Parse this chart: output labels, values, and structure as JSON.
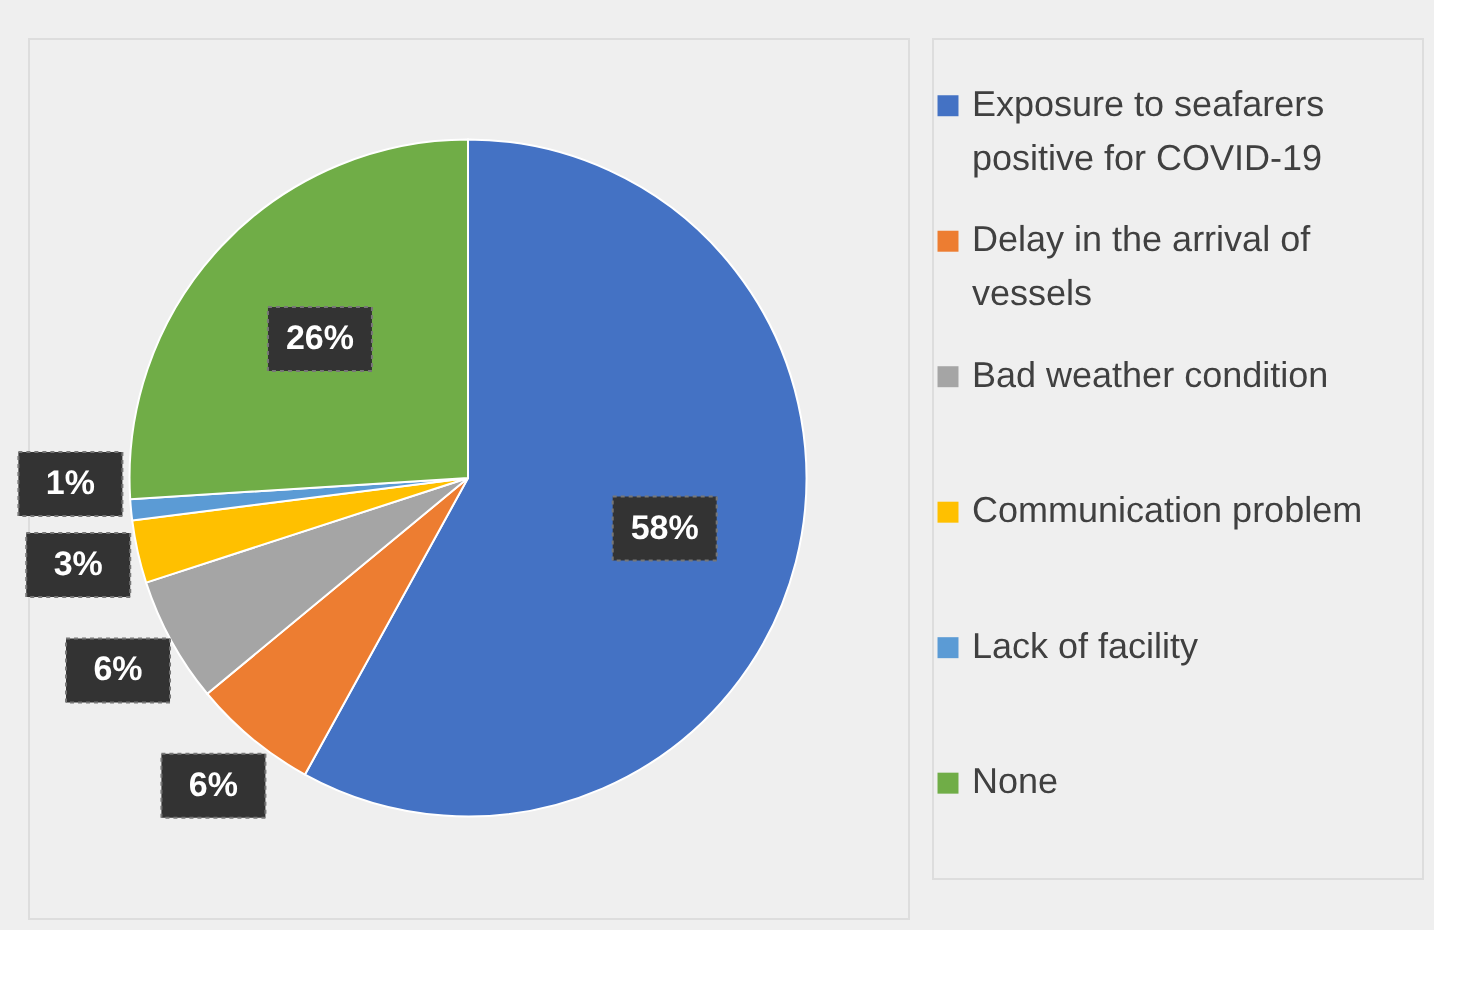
{
  "chart_data": {
    "type": "pie",
    "categories": [
      "Exposure to seafarers positive for COVID-19",
      "Delay in the arrival of vessels",
      "Bad weather condition",
      "Communication problem",
      "Lack of facility",
      "None"
    ],
    "values": [
      58,
      6,
      6,
      3,
      1,
      26
    ],
    "colors": [
      "#4472c4",
      "#ed7d31",
      "#a5a5a5",
      "#ffc000",
      "#5b9bd5",
      "#70ad47"
    ],
    "value_labels": [
      "58%",
      "6%",
      "6%",
      "3%",
      "1%",
      "26%"
    ],
    "legend": "right"
  }
}
